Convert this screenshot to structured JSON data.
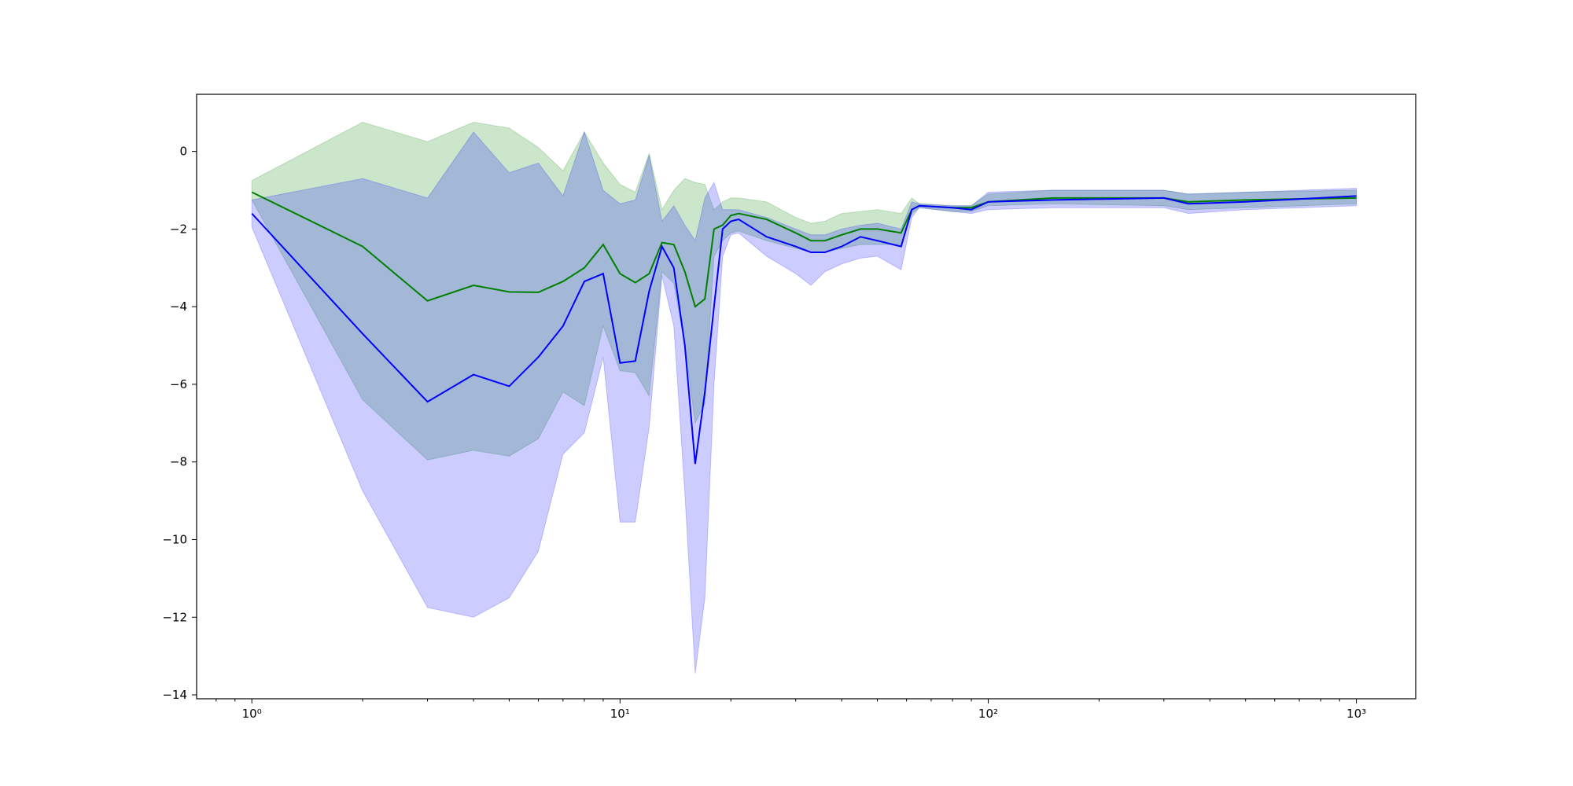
{
  "chart_data": {
    "type": "line",
    "x": [
      1,
      2,
      3,
      4,
      5,
      6,
      7,
      8,
      9,
      10,
      11,
      12,
      13,
      14,
      15,
      16,
      17,
      18,
      19,
      20,
      21,
      25,
      30,
      33,
      36,
      40,
      45,
      50,
      58,
      62,
      65,
      80,
      90,
      100,
      150,
      300,
      350,
      500,
      1000
    ],
    "series": [
      {
        "color": "#008000",
        "values": [
          -1.05,
          -2.45,
          -3.85,
          -3.45,
          -3.62,
          -3.63,
          -3.35,
          -3.0,
          -2.4,
          -3.15,
          -3.38,
          -3.15,
          -2.35,
          -2.4,
          -3.1,
          -4.0,
          -3.8,
          -2.0,
          -1.9,
          -1.65,
          -1.6,
          -1.75,
          -2.1,
          -2.3,
          -2.3,
          -2.15,
          -2.0,
          -2.0,
          -2.1,
          -1.5,
          -1.4,
          -1.45,
          -1.45,
          -1.3,
          -1.2,
          -1.2,
          -1.3,
          -1.25,
          -1.2
        ],
        "upper": [
          -0.75,
          0.75,
          0.25,
          0.75,
          0.6,
          0.1,
          -0.5,
          0.5,
          -0.3,
          -0.85,
          -1.05,
          -0.05,
          -1.5,
          -1.0,
          -0.7,
          -0.8,
          -0.85,
          -1.5,
          -1.3,
          -1.2,
          -1.2,
          -1.3,
          -1.7,
          -1.85,
          -1.8,
          -1.6,
          -1.55,
          -1.5,
          -1.6,
          -1.2,
          -1.35,
          -1.4,
          -1.4,
          -1.1,
          -1.0,
          -1.0,
          -1.1,
          -1.05,
          -1.0
        ],
        "lower": [
          -1.25,
          -6.4,
          -7.95,
          -7.7,
          -7.85,
          -7.4,
          -6.2,
          -6.55,
          -4.5,
          -5.65,
          -5.7,
          -6.3,
          -3.1,
          -3.4,
          -5.0,
          -7.0,
          -6.5,
          -2.7,
          -2.3,
          -2.1,
          -2.05,
          -2.3,
          -2.5,
          -2.6,
          -2.6,
          -2.5,
          -2.4,
          -2.4,
          -2.4,
          -1.6,
          -1.45,
          -1.55,
          -1.55,
          -1.4,
          -1.35,
          -1.4,
          -1.5,
          -1.45,
          -1.35
        ]
      },
      {
        "color": "#0000ff",
        "values": [
          -1.6,
          -4.7,
          -6.45,
          -5.75,
          -6.05,
          -5.3,
          -4.5,
          -3.35,
          -3.15,
          -5.45,
          -5.4,
          -3.6,
          -2.45,
          -3.0,
          -5.0,
          -8.05,
          -6.2,
          -4.0,
          -2.0,
          -1.8,
          -1.75,
          -2.2,
          -2.45,
          -2.6,
          -2.6,
          -2.45,
          -2.2,
          -2.3,
          -2.45,
          -1.5,
          -1.4,
          -1.45,
          -1.5,
          -1.3,
          -1.25,
          -1.2,
          -1.35,
          -1.3,
          -1.15
        ],
        "upper": [
          -1.25,
          -0.7,
          -1.2,
          0.5,
          -0.55,
          -0.3,
          -1.15,
          0.5,
          -1.0,
          -1.35,
          -1.25,
          -0.1,
          -1.8,
          -1.4,
          -1.9,
          -2.3,
          -1.2,
          -0.8,
          -1.5,
          -1.5,
          -1.5,
          -1.7,
          -2.0,
          -2.15,
          -2.15,
          -2.0,
          -1.9,
          -1.85,
          -2.0,
          -1.3,
          -1.35,
          -1.4,
          -1.4,
          -1.05,
          -1.0,
          -1.0,
          -1.1,
          -1.05,
          -0.95
        ],
        "lower": [
          -1.95,
          -8.75,
          -11.75,
          -12.0,
          -11.5,
          -10.3,
          -7.8,
          -7.25,
          -5.3,
          -9.55,
          -9.55,
          -7.1,
          -3.2,
          -4.5,
          -8.8,
          -13.45,
          -11.5,
          -6.0,
          -2.7,
          -2.15,
          -2.1,
          -2.7,
          -3.15,
          -3.45,
          -3.1,
          -2.9,
          -2.75,
          -2.7,
          -3.05,
          -1.7,
          -1.45,
          -1.55,
          -1.6,
          -1.5,
          -1.45,
          -1.45,
          -1.6,
          -1.5,
          -1.4
        ]
      }
    ],
    "band_opacity": 0.2,
    "xscale": "log",
    "xlim": [
      0.708,
      1449
    ],
    "ylim": [
      -14.1,
      1.47
    ],
    "xticks": [
      {
        "value": 1,
        "label": "10⁰"
      },
      {
        "value": 10,
        "label": "10¹"
      },
      {
        "value": 100,
        "label": "10²"
      },
      {
        "value": 1000,
        "label": "10³"
      }
    ],
    "x_minor_ticks": [
      0.8,
      0.9,
      2,
      3,
      4,
      5,
      6,
      7,
      8,
      9,
      20,
      30,
      40,
      50,
      60,
      70,
      80,
      90,
      200,
      300,
      400,
      500,
      600,
      700,
      800,
      900
    ],
    "yticks": [
      {
        "value": -14,
        "label": "−14"
      },
      {
        "value": -12,
        "label": "−12"
      },
      {
        "value": -10,
        "label": "−10"
      },
      {
        "value": -8,
        "label": "−8"
      },
      {
        "value": -6,
        "label": "−6"
      },
      {
        "value": -4,
        "label": "−4"
      },
      {
        "value": -2,
        "label": "−2"
      },
      0
    ],
    "grid": false
  }
}
